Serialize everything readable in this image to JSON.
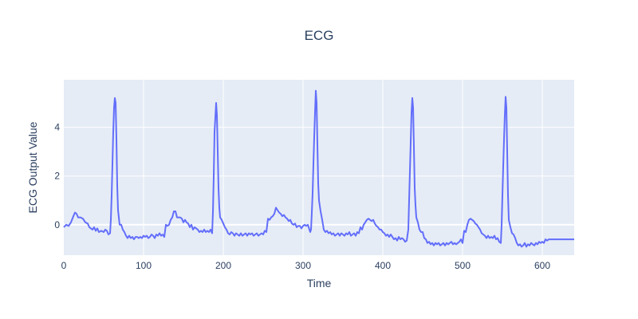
{
  "chart_data": {
    "type": "line",
    "title": "ECG",
    "xlabel": "Time",
    "ylabel": "ECG Output Value",
    "xlim": [
      0,
      640
    ],
    "ylim": [
      -1.25,
      5.95
    ],
    "x_ticks": [
      0,
      100,
      200,
      300,
      400,
      500,
      600
    ],
    "y_ticks": [
      0,
      2,
      4
    ],
    "grid": true,
    "colors": {
      "line": "#636efa",
      "plot_bg": "#e5ecf6",
      "grid": "#ffffff",
      "text": "#2a3f5f"
    },
    "series": [
      {
        "points": [
          [
            0,
            -0.1
          ],
          [
            3,
            0.0
          ],
          [
            6,
            -0.05
          ],
          [
            9,
            0.1
          ],
          [
            12,
            0.35
          ],
          [
            14,
            0.5
          ],
          [
            16,
            0.45
          ],
          [
            18,
            0.3
          ],
          [
            21,
            0.3
          ],
          [
            24,
            0.25
          ],
          [
            27,
            0.1
          ],
          [
            30,
            0.05
          ],
          [
            32,
            -0.1
          ],
          [
            34,
            -0.15
          ],
          [
            36,
            -0.2
          ],
          [
            38,
            -0.1
          ],
          [
            40,
            -0.25
          ],
          [
            42,
            -0.15
          ],
          [
            44,
            -0.3
          ],
          [
            47,
            -0.25
          ],
          [
            50,
            -0.3
          ],
          [
            52,
            -0.2
          ],
          [
            54,
            -0.25
          ],
          [
            56,
            -0.4
          ],
          [
            58,
            -0.35
          ],
          [
            59,
            0.2
          ],
          [
            60,
            1.2
          ],
          [
            61,
            2.5
          ],
          [
            62,
            3.8
          ],
          [
            63,
            4.8
          ],
          [
            64,
            5.2
          ],
          [
            65,
            5.0
          ],
          [
            66,
            3.5
          ],
          [
            67,
            1.6
          ],
          [
            68,
            0.6
          ],
          [
            69,
            0.3
          ],
          [
            70,
            0.0
          ],
          [
            72,
            0.0
          ],
          [
            74,
            -0.2
          ],
          [
            76,
            -0.3
          ],
          [
            78,
            -0.45
          ],
          [
            80,
            -0.55
          ],
          [
            82,
            -0.45
          ],
          [
            84,
            -0.55
          ],
          [
            86,
            -0.5
          ],
          [
            88,
            -0.6
          ],
          [
            90,
            -0.5
          ],
          [
            92,
            -0.5
          ],
          [
            94,
            -0.55
          ],
          [
            96,
            -0.5
          ],
          [
            98,
            -0.55
          ],
          [
            100,
            -0.45
          ],
          [
            102,
            -0.5
          ],
          [
            104,
            -0.45
          ],
          [
            106,
            -0.55
          ],
          [
            108,
            -0.5
          ],
          [
            110,
            -0.4
          ],
          [
            112,
            -0.45
          ],
          [
            114,
            -0.55
          ],
          [
            116,
            -0.4
          ],
          [
            118,
            -0.45
          ],
          [
            120,
            -0.35
          ],
          [
            122,
            -0.45
          ],
          [
            124,
            -0.4
          ],
          [
            126,
            -0.5
          ],
          [
            128,
            0.0
          ],
          [
            130,
            -0.05
          ],
          [
            132,
            0.0
          ],
          [
            134,
            0.2
          ],
          [
            136,
            0.3
          ],
          [
            138,
            0.55
          ],
          [
            140,
            0.55
          ],
          [
            142,
            0.3
          ],
          [
            144,
            0.3
          ],
          [
            146,
            0.3
          ],
          [
            148,
            0.25
          ],
          [
            150,
            0.1
          ],
          [
            152,
            0.2
          ],
          [
            154,
            0.1
          ],
          [
            156,
            0.05
          ],
          [
            158,
            -0.1
          ],
          [
            160,
            0.0
          ],
          [
            162,
            -0.2
          ],
          [
            164,
            -0.1
          ],
          [
            166,
            -0.15
          ],
          [
            168,
            -0.2
          ],
          [
            170,
            -0.3
          ],
          [
            172,
            -0.25
          ],
          [
            174,
            -0.3
          ],
          [
            176,
            -0.2
          ],
          [
            178,
            -0.3
          ],
          [
            180,
            -0.25
          ],
          [
            182,
            -0.3
          ],
          [
            184,
            -0.2
          ],
          [
            186,
            -0.35
          ],
          [
            187,
            0.5
          ],
          [
            188,
            2.0
          ],
          [
            189,
            3.8
          ],
          [
            190,
            4.4
          ],
          [
            191,
            5.0
          ],
          [
            192,
            4.5
          ],
          [
            193,
            3.0
          ],
          [
            194,
            1.5
          ],
          [
            195,
            0.7
          ],
          [
            196,
            0.3
          ],
          [
            198,
            0.2
          ],
          [
            200,
            0.05
          ],
          [
            202,
            -0.1
          ],
          [
            204,
            -0.2
          ],
          [
            206,
            -0.35
          ],
          [
            208,
            -0.4
          ],
          [
            210,
            -0.3
          ],
          [
            212,
            -0.35
          ],
          [
            214,
            -0.45
          ],
          [
            216,
            -0.35
          ],
          [
            218,
            -0.4
          ],
          [
            220,
            -0.45
          ],
          [
            222,
            -0.35
          ],
          [
            224,
            -0.45
          ],
          [
            226,
            -0.4
          ],
          [
            228,
            -0.35
          ],
          [
            230,
            -0.45
          ],
          [
            232,
            -0.35
          ],
          [
            234,
            -0.4
          ],
          [
            236,
            -0.35
          ],
          [
            238,
            -0.45
          ],
          [
            240,
            -0.4
          ],
          [
            242,
            -0.35
          ],
          [
            244,
            -0.45
          ],
          [
            246,
            -0.4
          ],
          [
            248,
            -0.35
          ],
          [
            250,
            -0.4
          ],
          [
            252,
            -0.25
          ],
          [
            254,
            -0.3
          ],
          [
            256,
            0.25
          ],
          [
            258,
            0.2
          ],
          [
            260,
            0.3
          ],
          [
            262,
            0.35
          ],
          [
            264,
            0.45
          ],
          [
            266,
            0.7
          ],
          [
            268,
            0.6
          ],
          [
            270,
            0.5
          ],
          [
            272,
            0.45
          ],
          [
            274,
            0.35
          ],
          [
            276,
            0.4
          ],
          [
            278,
            0.3
          ],
          [
            280,
            0.25
          ],
          [
            282,
            0.15
          ],
          [
            284,
            0.2
          ],
          [
            286,
            0.05
          ],
          [
            288,
            0.0
          ],
          [
            290,
            0.05
          ],
          [
            292,
            -0.1
          ],
          [
            294,
            -0.05
          ],
          [
            296,
            -0.05
          ],
          [
            298,
            -0.15
          ],
          [
            300,
            -0.05
          ],
          [
            302,
            0.0
          ],
          [
            304,
            -0.05
          ],
          [
            306,
            0.0
          ],
          [
            308,
            -0.2
          ],
          [
            309,
            -0.3
          ],
          [
            310,
            -0.2
          ],
          [
            311,
            0.5
          ],
          [
            312,
            1.3
          ],
          [
            313,
            2.5
          ],
          [
            314,
            3.6
          ],
          [
            315,
            4.6
          ],
          [
            316,
            5.5
          ],
          [
            317,
            5.0
          ],
          [
            318,
            3.3
          ],
          [
            319,
            1.7
          ],
          [
            320,
            1.0
          ],
          [
            322,
            0.55
          ],
          [
            324,
            0.2
          ],
          [
            326,
            -0.2
          ],
          [
            328,
            -0.3
          ],
          [
            330,
            -0.25
          ],
          [
            332,
            -0.35
          ],
          [
            334,
            -0.3
          ],
          [
            336,
            -0.4
          ],
          [
            338,
            -0.35
          ],
          [
            340,
            -0.45
          ],
          [
            342,
            -0.4
          ],
          [
            344,
            -0.35
          ],
          [
            346,
            -0.45
          ],
          [
            348,
            -0.35
          ],
          [
            350,
            -0.4
          ],
          [
            352,
            -0.45
          ],
          [
            354,
            -0.35
          ],
          [
            356,
            -0.4
          ],
          [
            358,
            -0.3
          ],
          [
            360,
            -0.45
          ],
          [
            362,
            -0.4
          ],
          [
            364,
            -0.35
          ],
          [
            366,
            -0.45
          ],
          [
            368,
            -0.3
          ],
          [
            370,
            -0.35
          ],
          [
            372,
            -0.1
          ],
          [
            374,
            -0.2
          ],
          [
            376,
            0.0
          ],
          [
            378,
            0.1
          ],
          [
            380,
            0.2
          ],
          [
            382,
            0.25
          ],
          [
            384,
            0.2
          ],
          [
            386,
            0.15
          ],
          [
            388,
            0.2
          ],
          [
            390,
            0.05
          ],
          [
            392,
            -0.05
          ],
          [
            394,
            -0.1
          ],
          [
            396,
            -0.2
          ],
          [
            398,
            -0.2
          ],
          [
            400,
            -0.3
          ],
          [
            402,
            -0.35
          ],
          [
            404,
            -0.45
          ],
          [
            406,
            -0.4
          ],
          [
            408,
            -0.5
          ],
          [
            410,
            -0.4
          ],
          [
            412,
            -0.5
          ],
          [
            414,
            -0.6
          ],
          [
            416,
            -0.55
          ],
          [
            418,
            -0.65
          ],
          [
            420,
            -0.5
          ],
          [
            422,
            -0.6
          ],
          [
            424,
            -0.55
          ],
          [
            426,
            -0.6
          ],
          [
            428,
            -0.7
          ],
          [
            430,
            -0.65
          ],
          [
            432,
            -0.2
          ],
          [
            433,
            1.0
          ],
          [
            434,
            2.2
          ],
          [
            435,
            3.4
          ],
          [
            436,
            4.6
          ],
          [
            437,
            5.2
          ],
          [
            438,
            4.8
          ],
          [
            439,
            3.2
          ],
          [
            440,
            1.5
          ],
          [
            441,
            0.8
          ],
          [
            442,
            0.3
          ],
          [
            444,
            0.1
          ],
          [
            446,
            -0.2
          ],
          [
            448,
            -0.3
          ],
          [
            450,
            -0.3
          ],
          [
            452,
            -0.55
          ],
          [
            454,
            -0.6
          ],
          [
            456,
            -0.75
          ],
          [
            458,
            -0.7
          ],
          [
            460,
            -0.8
          ],
          [
            462,
            -0.75
          ],
          [
            464,
            -0.85
          ],
          [
            466,
            -0.75
          ],
          [
            468,
            -0.8
          ],
          [
            470,
            -0.75
          ],
          [
            472,
            -0.85
          ],
          [
            474,
            -0.8
          ],
          [
            476,
            -0.75
          ],
          [
            478,
            -0.85
          ],
          [
            480,
            -0.75
          ],
          [
            482,
            -0.8
          ],
          [
            484,
            -0.75
          ],
          [
            486,
            -0.7
          ],
          [
            488,
            -0.8
          ],
          [
            490,
            -0.75
          ],
          [
            492,
            -0.8
          ],
          [
            494,
            -0.75
          ],
          [
            496,
            -0.7
          ],
          [
            498,
            -0.6
          ],
          [
            500,
            -0.75
          ],
          [
            502,
            -0.25
          ],
          [
            504,
            -0.3
          ],
          [
            506,
            0.0
          ],
          [
            508,
            0.2
          ],
          [
            510,
            0.25
          ],
          [
            512,
            0.2
          ],
          [
            514,
            0.15
          ],
          [
            516,
            0.05
          ],
          [
            518,
            0.0
          ],
          [
            520,
            -0.1
          ],
          [
            522,
            -0.2
          ],
          [
            524,
            -0.35
          ],
          [
            526,
            -0.4
          ],
          [
            528,
            -0.45
          ],
          [
            530,
            -0.55
          ],
          [
            532,
            -0.45
          ],
          [
            534,
            -0.55
          ],
          [
            536,
            -0.5
          ],
          [
            538,
            -0.55
          ],
          [
            540,
            -0.45
          ],
          [
            542,
            -0.6
          ],
          [
            544,
            -0.55
          ],
          [
            546,
            -0.7
          ],
          [
            548,
            -0.75
          ],
          [
            549,
            0.0
          ],
          [
            550,
            1.2
          ],
          [
            551,
            2.4
          ],
          [
            552,
            3.5
          ],
          [
            553,
            4.5
          ],
          [
            554,
            5.25
          ],
          [
            555,
            4.8
          ],
          [
            556,
            3.0
          ],
          [
            557,
            1.2
          ],
          [
            558,
            0.2
          ],
          [
            560,
            -0.1
          ],
          [
            562,
            -0.35
          ],
          [
            564,
            -0.4
          ],
          [
            566,
            -0.55
          ],
          [
            568,
            -0.75
          ],
          [
            570,
            -0.85
          ],
          [
            572,
            -0.8
          ],
          [
            574,
            -0.9
          ],
          [
            576,
            -0.85
          ],
          [
            578,
            -0.75
          ],
          [
            580,
            -0.9
          ],
          [
            582,
            -0.8
          ],
          [
            584,
            -0.85
          ],
          [
            586,
            -0.75
          ],
          [
            588,
            -0.8
          ],
          [
            590,
            -0.85
          ],
          [
            592,
            -0.75
          ],
          [
            594,
            -0.8
          ],
          [
            596,
            -0.7
          ],
          [
            598,
            -0.75
          ],
          [
            600,
            -0.7
          ],
          [
            602,
            -0.75
          ],
          [
            604,
            -0.6
          ],
          [
            606,
            -0.65
          ],
          [
            608,
            -0.6
          ],
          [
            640,
            -0.6
          ]
        ]
      }
    ]
  }
}
